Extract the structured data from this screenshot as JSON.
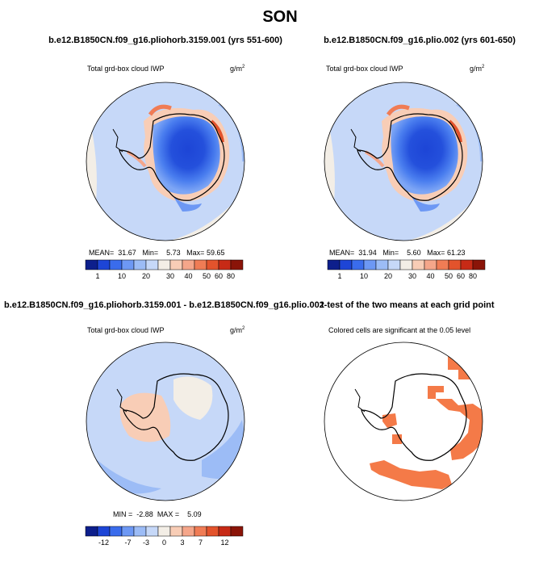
{
  "title": "SON",
  "panels": [
    {
      "id": "p1",
      "header": "b.e12.B1850CN.f09_g16.pliohorb.3159.001 (yrs 551-600)",
      "variable": "Total grd-box cloud IWP",
      "units": "g/m",
      "units_sup": "2",
      "stats": {
        "mean_label": "MEAN=",
        "mean": "31.67",
        "min_label": "Min=",
        "min": "5.73",
        "max_label": "Max=",
        "max": "59.65"
      }
    },
    {
      "id": "p2",
      "header": "b.e12.B1850CN.f09_g16.plio.002 (yrs 601-650)",
      "variable": "Total grd-box cloud IWP",
      "units": "g/m",
      "units_sup": "2",
      "stats": {
        "mean_label": "MEAN=",
        "mean": "31.94",
        "min_label": "Min=",
        "min": "5.60",
        "max_label": "Max=",
        "max": "61.23"
      }
    },
    {
      "id": "p3",
      "header": "b.e12.B1850CN.f09_g16.pliohorb.3159.001 - b.e12.B1850CN.f09_g16.plio.002",
      "variable": "Total grd-box cloud IWP",
      "units": "g/m",
      "units_sup": "2",
      "stats": {
        "min_label": "MIN =",
        "min": "-2.88",
        "max_label": "MAX =",
        "max": "5.09"
      }
    },
    {
      "id": "p4",
      "header": "t-test of the two means at each grid point",
      "note": "Colored cells are significant at the 0.05 level"
    }
  ],
  "chart_data": [
    {
      "type": "heatmap",
      "projection": "south-polar-stereographic",
      "colorbar": {
        "colors": [
          "#0d1f8c",
          "#1d45d6",
          "#3a6cec",
          "#6d98f4",
          "#9cbcf6",
          "#c6d8f8",
          "#f3eee6",
          "#f8cdb6",
          "#f5a68a",
          "#f07c55",
          "#e3532c",
          "#c72a16",
          "#8a1408"
        ],
        "ticks": [
          "1",
          "10",
          "20",
          "30",
          "40",
          "50",
          "60",
          "80"
        ]
      }
    },
    {
      "type": "heatmap",
      "projection": "south-polar-stereographic",
      "colorbar": {
        "colors": [
          "#0d1f8c",
          "#1d45d6",
          "#3a6cec",
          "#6d98f4",
          "#9cbcf6",
          "#c6d8f8",
          "#f3eee6",
          "#f8cdb6",
          "#f5a68a",
          "#f07c55",
          "#e3532c",
          "#c72a16",
          "#8a1408"
        ],
        "ticks": [
          "1",
          "10",
          "20",
          "30",
          "40",
          "50",
          "60",
          "80"
        ]
      }
    },
    {
      "type": "heatmap",
      "projection": "south-polar-stereographic",
      "colorbar": {
        "colors": [
          "#0d1f8c",
          "#1d45d6",
          "#3a6cec",
          "#6d98f4",
          "#9cbcf6",
          "#c6d8f8",
          "#f3eee6",
          "#f8cdb6",
          "#f5a68a",
          "#f07c55",
          "#e3532c",
          "#c72a16",
          "#8a1408"
        ],
        "ticks": [
          "-12",
          "-7",
          "-3",
          "0",
          "3",
          "7",
          "12"
        ]
      }
    },
    {
      "type": "heatmap",
      "projection": "south-polar-stereographic",
      "significance_color": "#f47a48"
    }
  ]
}
